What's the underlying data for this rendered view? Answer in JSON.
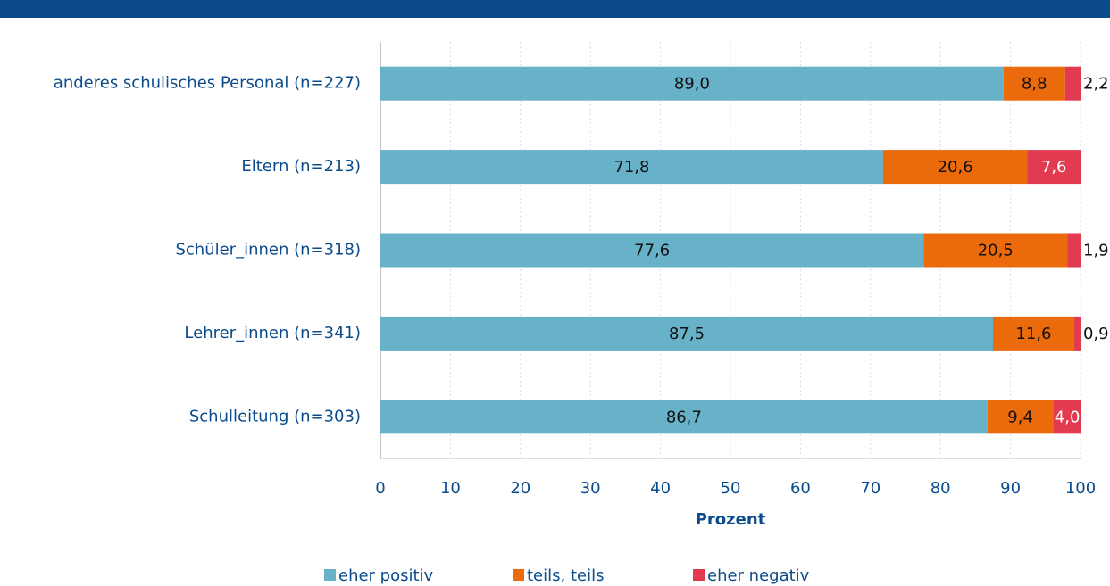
{
  "chart_data": {
    "type": "stacked_bar_horizontal",
    "categories": [
      "anderes schulisches Personal (n=227)",
      "Eltern (n=213)",
      "Schüler_innen (n=318)",
      "Lehrer_innen (n=341)",
      "Schulleitung (n=303)"
    ],
    "series": [
      {
        "name": "eher positiv",
        "color": "#67b1c9",
        "values": [
          89.0,
          71.8,
          77.6,
          87.5,
          86.7
        ],
        "value_labels": [
          "89,0",
          "71,8",
          "77,6",
          "87,5",
          "86,7"
        ]
      },
      {
        "name": "teils, teils",
        "color": "#eb6a0c",
        "values": [
          8.8,
          20.6,
          20.5,
          11.6,
          9.4
        ],
        "value_labels": [
          "8,8",
          "20,6",
          "20,5",
          "11,6",
          "9,4"
        ]
      },
      {
        "name": "eher negativ",
        "color": "#e23a50",
        "values": [
          2.2,
          7.6,
          1.9,
          0.9,
          4.0
        ],
        "value_labels": [
          "2,2",
          "7,6",
          "1,9",
          "0,9",
          "4,0"
        ]
      }
    ],
    "xlabel": "Prozent",
    "xlim": [
      0,
      100
    ],
    "xticks": [
      0,
      10,
      20,
      30,
      40,
      50,
      60,
      70,
      80,
      90,
      100
    ],
    "grid": true
  }
}
